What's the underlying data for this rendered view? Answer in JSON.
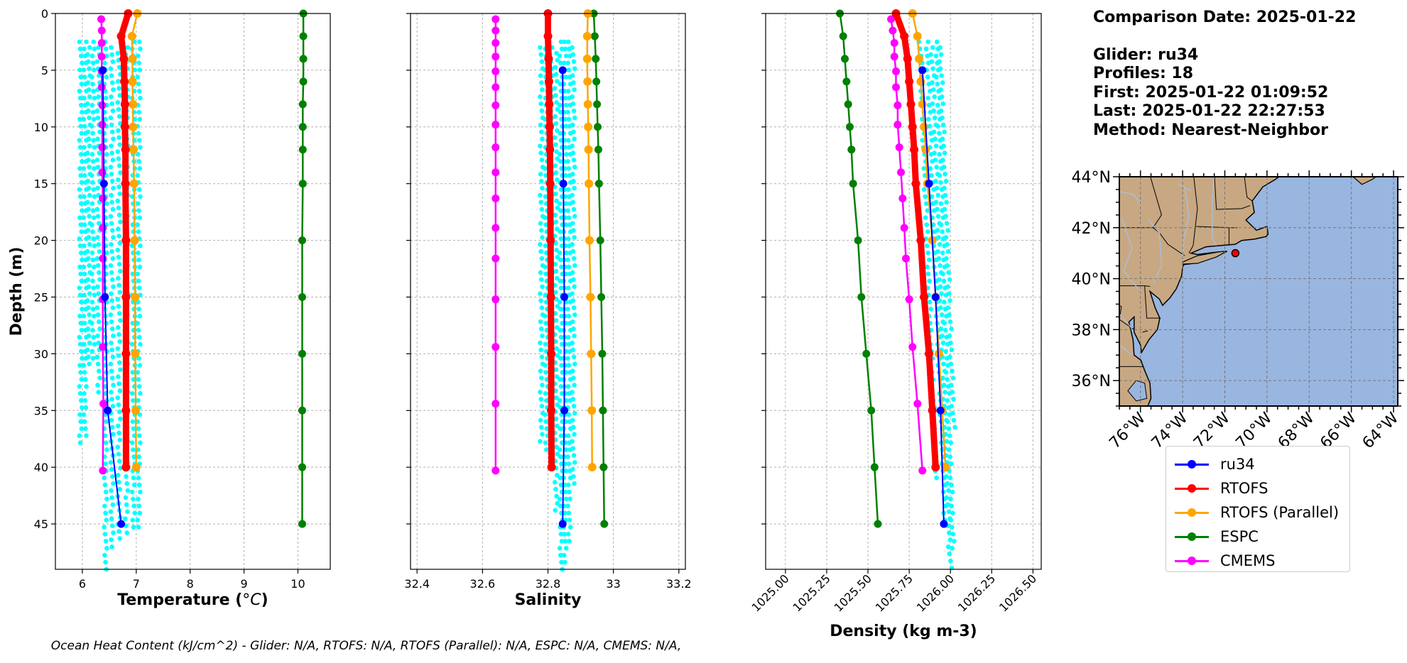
{
  "info": {
    "comparison_date": "Comparison Date: 2025-01-22",
    "glider": "Glider: ru34",
    "profiles": "Profiles: 18",
    "first": "First: 2025-01-22 01:09:52",
    "last": "Last: 2025-01-22 22:27:53",
    "method": "Method: Nearest-Neighbor"
  },
  "legend": [
    {
      "name": "ru34",
      "color": "#0000ff"
    },
    {
      "name": "RTOFS",
      "color": "#ff0000"
    },
    {
      "name": "RTOFS (Parallel)",
      "color": "#ffa500"
    },
    {
      "name": "ESPC",
      "color": "#008000"
    },
    {
      "name": "CMEMS",
      "color": "#ff00ff"
    }
  ],
  "footer": "Ocean Heat Content (kJ/cm^2) - Glider: N/A,  RTOFS: N/A,  RTOFS (Parallel): N/A,  ESPC: N/A,  CMEMS: N/A,",
  "chart_data": [
    {
      "type": "line",
      "xlabel": "Temperature (°C)",
      "ylabel": "Depth (m)",
      "xlim": [
        5.5,
        10.6
      ],
      "ylim": [
        49,
        0
      ],
      "xticks": [
        6,
        7,
        8,
        9,
        10
      ],
      "yticks": [
        0,
        5,
        10,
        15,
        20,
        25,
        30,
        35,
        40,
        45
      ],
      "grid": true,
      "glider_points": {
        "color": "#00ffff",
        "columns": [
          {
            "x": 5.97,
            "depth_range": [
              2.5,
              38.3
            ]
          },
          {
            "x": 6.05,
            "depth_range": [
              2.5,
              37.5
            ]
          },
          {
            "x": 6.12,
            "depth_range": [
              3.0,
              31.0
            ]
          },
          {
            "x": 6.2,
            "depth_range": [
              2.5,
              30.5
            ]
          },
          {
            "x": 6.3,
            "depth_range": [
              3.0,
              33.5
            ]
          },
          {
            "x": 6.43,
            "depth_range": [
              2.5,
              49.0
            ]
          },
          {
            "x": 6.55,
            "depth_range": [
              3.0,
              47.5
            ]
          },
          {
            "x": 6.68,
            "depth_range": [
              3.5,
              46.5
            ]
          },
          {
            "x": 6.82,
            "depth_range": [
              3.0,
              46.0
            ]
          },
          {
            "x": 6.95,
            "depth_range": [
              2.5,
              45.5
            ]
          },
          {
            "x": 7.05,
            "depth_range": [
              2.5,
              45.5
            ]
          }
        ]
      },
      "series": [
        {
          "name": "ru34",
          "color": "#0000ff",
          "depth": [
            5,
            15,
            25,
            35,
            45
          ],
          "values": [
            6.38,
            6.4,
            6.42,
            6.47,
            6.72
          ]
        },
        {
          "name": "RTOFS",
          "color": "#ff0000",
          "depth": [
            0,
            2,
            4,
            6,
            8,
            10,
            12,
            15,
            20,
            25,
            30,
            35,
            40
          ],
          "values": [
            6.85,
            6.72,
            6.77,
            6.78,
            6.79,
            6.79,
            6.8,
            6.8,
            6.81,
            6.81,
            6.81,
            6.81,
            6.81
          ]
        },
        {
          "name": "RTOFS (Parallel)",
          "color": "#ffa500",
          "depth": [
            0,
            2,
            4,
            6,
            8,
            10,
            12,
            15,
            20,
            25,
            30,
            35,
            40
          ],
          "values": [
            7.02,
            6.92,
            6.93,
            6.93,
            6.94,
            6.94,
            6.95,
            6.96,
            6.97,
            6.98,
            6.98,
            6.99,
            7.0
          ]
        },
        {
          "name": "ESPC",
          "color": "#008000",
          "depth": [
            0,
            2,
            4,
            6,
            8,
            10,
            12,
            15,
            20,
            25,
            30,
            35,
            40,
            45
          ],
          "values": [
            10.1,
            10.1,
            10.1,
            10.1,
            10.09,
            10.09,
            10.09,
            10.09,
            10.08,
            10.08,
            10.08,
            10.08,
            10.08,
            10.08
          ]
        },
        {
          "name": "CMEMS",
          "color": "#ff00ff",
          "depth": [
            0.5,
            1.5,
            2.6,
            3.8,
            5.1,
            6.5,
            8.1,
            9.8,
            11.8,
            14.0,
            16.3,
            18.9,
            21.6,
            25.2,
            29.4,
            34.4,
            40.3
          ],
          "values": [
            6.35,
            6.36,
            6.36,
            6.36,
            6.36,
            6.36,
            6.37,
            6.37,
            6.37,
            6.37,
            6.38,
            6.38,
            6.38,
            6.38,
            6.38,
            6.39,
            6.38
          ]
        }
      ]
    },
    {
      "type": "line",
      "xlabel": "Salinity",
      "ylim": [
        49,
        0
      ],
      "xlim": [
        32.38,
        33.22
      ],
      "xticks": [
        32.4,
        32.6,
        32.8,
        33.0,
        33.2
      ],
      "yticks": [
        0,
        5,
        10,
        15,
        20,
        25,
        30,
        35,
        40,
        45
      ],
      "grid": true,
      "glider_points": {
        "color": "#00ffff",
        "columns": [
          {
            "x": 32.78,
            "depth_range": [
              3.0,
              38.0
            ]
          },
          {
            "x": 32.795,
            "depth_range": [
              2.5,
              38.5
            ]
          },
          {
            "x": 32.81,
            "depth_range": [
              3.0,
              39.5
            ]
          },
          {
            "x": 32.825,
            "depth_range": [
              3.5,
              44.0
            ]
          },
          {
            "x": 32.84,
            "depth_range": [
              2.5,
              49.0
            ]
          },
          {
            "x": 32.852,
            "depth_range": [
              2.5,
              48.5
            ]
          },
          {
            "x": 32.865,
            "depth_range": [
              2.5,
              47.0
            ]
          },
          {
            "x": 32.878,
            "depth_range": [
              3.0,
              42.0
            ]
          }
        ]
      },
      "series": [
        {
          "name": "ru34",
          "color": "#0000ff",
          "depth": [
            5,
            15,
            25,
            35,
            45
          ],
          "values": [
            32.845,
            32.847,
            32.85,
            32.85,
            32.845
          ]
        },
        {
          "name": "RTOFS",
          "color": "#ff0000",
          "depth": [
            0,
            2,
            4,
            6,
            8,
            10,
            12,
            15,
            20,
            25,
            30,
            35,
            40
          ],
          "values": [
            32.8,
            32.8,
            32.802,
            32.803,
            32.804,
            32.805,
            32.806,
            32.807,
            32.808,
            32.809,
            32.81,
            32.81,
            32.811
          ]
        },
        {
          "name": "RTOFS (Parallel)",
          "color": "#ffa500",
          "depth": [
            0,
            2,
            4,
            6,
            8,
            10,
            12,
            15,
            20,
            25,
            30,
            35,
            40
          ],
          "values": [
            32.922,
            32.92,
            32.92,
            32.921,
            32.922,
            32.923,
            32.924,
            32.925,
            32.927,
            32.93,
            32.932,
            32.934,
            32.935
          ]
        },
        {
          "name": "ESPC",
          "color": "#008000",
          "depth": [
            0,
            2,
            4,
            6,
            8,
            10,
            12,
            15,
            20,
            25,
            30,
            35,
            40,
            45
          ],
          "values": [
            32.94,
            32.943,
            32.946,
            32.948,
            32.95,
            32.952,
            32.954,
            32.956,
            32.96,
            32.963,
            32.966,
            32.968,
            32.97,
            32.972
          ]
        },
        {
          "name": "CMEMS",
          "color": "#ff00ff",
          "depth": [
            0.5,
            1.5,
            2.6,
            3.8,
            5.1,
            6.5,
            8.1,
            9.8,
            11.8,
            14.0,
            16.3,
            18.9,
            21.6,
            25.2,
            29.4,
            34.4,
            40.3
          ],
          "values": [
            32.64,
            32.64,
            32.64,
            32.64,
            32.64,
            32.64,
            32.64,
            32.64,
            32.64,
            32.64,
            32.64,
            32.64,
            32.64,
            32.64,
            32.64,
            32.64,
            32.64
          ]
        }
      ]
    },
    {
      "type": "line",
      "xlabel": "Density (kg m-3)",
      "ylim": [
        49,
        0
      ],
      "xlim": [
        1024.88,
        1026.55
      ],
      "xticks": [
        1025.0,
        1025.25,
        1025.5,
        1025.75,
        1026.0,
        1026.25,
        1026.5
      ],
      "xtick_labels": [
        "1025.00",
        "1025.25",
        "1025.50",
        "1025.75",
        "1026.00",
        "1026.25",
        "1026.50"
      ],
      "yticks": [
        0,
        5,
        10,
        15,
        20,
        25,
        30,
        35,
        40,
        45
      ],
      "grid": true,
      "glider_points": {
        "color": "#00ffff",
        "columns": [
          {
            "x_top": 1025.81,
            "x_bottom": 1025.93,
            "depth_range": [
              2.5,
              41.0
            ]
          },
          {
            "x_top": 1025.85,
            "x_bottom": 1025.98,
            "depth_range": [
              2.5,
              45.0
            ]
          },
          {
            "x_top": 1025.88,
            "x_bottom": 1026.0,
            "depth_range": [
              3.0,
              49.0
            ]
          },
          {
            "x_top": 1025.91,
            "x_bottom": 1026.02,
            "depth_range": [
              2.5,
              47.5
            ]
          },
          {
            "x_top": 1025.93,
            "x_bottom": 1026.05,
            "depth_range": [
              3.0,
              36.5
            ]
          }
        ]
      },
      "series": [
        {
          "name": "ru34",
          "color": "#0000ff",
          "depth": [
            5,
            15,
            25,
            35,
            45
          ],
          "values": [
            1025.83,
            1025.87,
            1025.91,
            1025.94,
            1025.96
          ]
        },
        {
          "name": "RTOFS",
          "color": "#ff0000",
          "depth": [
            0,
            2,
            4,
            6,
            8,
            10,
            12,
            15,
            20,
            25,
            30,
            35,
            40
          ],
          "values": [
            1025.67,
            1025.72,
            1025.74,
            1025.75,
            1025.76,
            1025.77,
            1025.78,
            1025.79,
            1025.82,
            1025.84,
            1025.87,
            1025.89,
            1025.91
          ]
        },
        {
          "name": "RTOFS (Parallel)",
          "color": "#ffa500",
          "depth": [
            0,
            2,
            4,
            6,
            8,
            10,
            12,
            15,
            20,
            25,
            30,
            35,
            40
          ],
          "values": [
            1025.77,
            1025.8,
            1025.81,
            1025.82,
            1025.83,
            1025.84,
            1025.85,
            1025.86,
            1025.89,
            1025.91,
            1025.93,
            1025.95,
            1025.97
          ]
        },
        {
          "name": "ESPC",
          "color": "#008000",
          "depth": [
            0,
            2,
            4,
            6,
            8,
            10,
            12,
            15,
            20,
            25,
            30,
            35,
            40,
            45
          ],
          "values": [
            1025.33,
            1025.35,
            1025.36,
            1025.37,
            1025.38,
            1025.39,
            1025.4,
            1025.41,
            1025.44,
            1025.46,
            1025.49,
            1025.52,
            1025.54,
            1025.56
          ]
        },
        {
          "name": "CMEMS",
          "color": "#ff00ff",
          "depth": [
            0.5,
            1.5,
            2.6,
            3.8,
            5.1,
            6.5,
            8.1,
            9.8,
            11.8,
            14.0,
            16.3,
            18.9,
            21.6,
            25.2,
            29.4,
            34.4,
            40.3
          ],
          "values": [
            1025.64,
            1025.65,
            1025.66,
            1025.66,
            1025.67,
            1025.67,
            1025.68,
            1025.68,
            1025.69,
            1025.7,
            1025.71,
            1025.72,
            1025.73,
            1025.75,
            1025.77,
            1025.8,
            1025.83
          ]
        }
      ]
    }
  ],
  "map": {
    "lat_labels": [
      "44°N",
      "42°N",
      "40°N",
      "38°N",
      "36°N"
    ],
    "lat_values": [
      44,
      42,
      40,
      38,
      36
    ],
    "lon_labels": [
      "76°W",
      "74°W",
      "72°W",
      "70°W",
      "68°W",
      "66°W",
      "64°W"
    ],
    "lon_values": [
      -76,
      -74,
      -72,
      -70,
      -68,
      -66,
      -64
    ],
    "lat_range": [
      35,
      44
    ],
    "lon_range": [
      -77,
      -63.8
    ],
    "land_color": "#c8a882",
    "ocean_color": "#99b6e0",
    "glider_position": {
      "lon": -71.5,
      "lat": 41.0
    }
  }
}
